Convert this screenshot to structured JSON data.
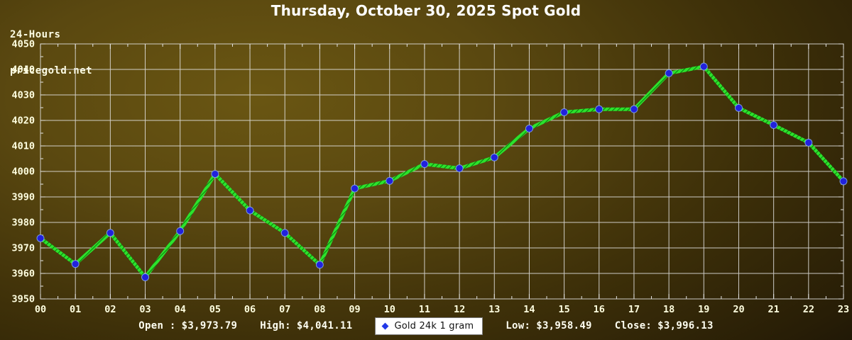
{
  "brand": {
    "line1": "24-Hours",
    "line2": "pricegold.net"
  },
  "header": {
    "title": "Thursday, October 30, 2025 Spot Gold"
  },
  "chart_data": {
    "type": "line",
    "title": "Thursday, October 30, 2025 Spot Gold",
    "categories": [
      "00",
      "01",
      "02",
      "03",
      "04",
      "05",
      "06",
      "07",
      "08",
      "09",
      "10",
      "11",
      "12",
      "13",
      "14",
      "15",
      "16",
      "17",
      "18",
      "19",
      "20",
      "21",
      "22",
      "23"
    ],
    "series": [
      {
        "name": "Gold 24k 1 gram",
        "values": [
          3973.79,
          3963.7,
          3975.9,
          3958.49,
          3976.6,
          3999.0,
          3984.7,
          3975.9,
          3963.4,
          3993.3,
          3996.3,
          4002.9,
          4001.2,
          4005.5,
          4016.8,
          4023.2,
          4024.4,
          4024.4,
          4038.5,
          4041.11,
          4024.9,
          4018.2,
          4011.3,
          3996.13
        ]
      }
    ],
    "xlabel": "",
    "ylabel": "",
    "ylim": [
      3950,
      4050
    ],
    "yticks": [
      3950,
      3960,
      3970,
      3980,
      3990,
      4000,
      4010,
      4020,
      4030,
      4040,
      4050
    ],
    "grid": true,
    "legend_position": "bottom-center",
    "stats": {
      "open": 3973.79,
      "high": 4041.11,
      "low": 3958.49,
      "close": 3996.13
    }
  },
  "footer": {
    "open_label": "Open :",
    "open_value": "$3,973.79",
    "high_label": "High:",
    "high_value": "$4,041.11",
    "legend_label": "Gold 24k 1 gram",
    "low_label": "Low:",
    "low_value": "$3,958.49",
    "close_label": "Close:",
    "close_value": "$3,996.13"
  },
  "colors": {
    "line": "#2ce32c",
    "line_hatch": "#0c7d0c",
    "marker": "#2121dd",
    "marker_rim": "#8ab4f0",
    "grid": "#e6e6e6",
    "tick_label": "#ffffe0",
    "title": "#ffffff",
    "legend_bg": "#ffffff",
    "legend_text": "#111111",
    "legend_marker": "#2238e8"
  }
}
